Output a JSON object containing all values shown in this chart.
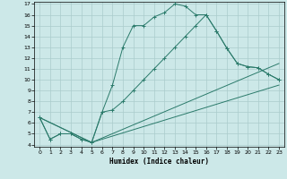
{
  "title": "",
  "xlabel": "Humidex (Indice chaleur)",
  "bg_color": "#cce8e8",
  "line_color": "#2a7a6a",
  "grid_color": "#aacccc",
  "xlim": [
    -0.5,
    23.5
  ],
  "ylim": [
    3.8,
    17.2
  ],
  "xticks": [
    0,
    1,
    2,
    3,
    4,
    5,
    6,
    7,
    8,
    9,
    10,
    11,
    12,
    13,
    14,
    15,
    16,
    17,
    18,
    19,
    20,
    21,
    22,
    23
  ],
  "yticks": [
    4,
    5,
    6,
    7,
    8,
    9,
    10,
    11,
    12,
    13,
    14,
    15,
    16,
    17
  ],
  "line1_x": [
    0,
    1,
    2,
    3,
    4,
    5,
    6,
    7,
    8,
    9,
    10,
    11,
    12,
    13,
    14,
    15,
    16,
    17,
    18,
    19,
    20,
    21,
    22,
    23
  ],
  "line1_y": [
    6.5,
    4.5,
    5.0,
    5.0,
    4.5,
    4.2,
    7.0,
    9.5,
    13.0,
    15.0,
    15.0,
    15.8,
    16.2,
    17.0,
    16.8,
    16.0,
    16.0,
    14.5,
    12.9,
    11.5,
    11.2,
    11.1,
    10.5,
    10.0
  ],
  "line2_x": [
    0,
    1,
    2,
    3,
    4,
    5,
    6,
    7,
    8,
    9,
    10,
    11,
    12,
    13,
    14,
    15,
    16,
    17,
    18,
    19,
    20,
    21,
    22,
    23
  ],
  "line2_y": [
    6.5,
    4.5,
    5.0,
    5.0,
    4.5,
    4.2,
    7.0,
    7.2,
    8.0,
    9.0,
    10.0,
    11.0,
    12.0,
    13.0,
    14.0,
    15.0,
    16.0,
    14.5,
    12.9,
    11.5,
    11.2,
    11.1,
    10.5,
    10.0
  ],
  "line3_x": [
    0,
    5,
    23
  ],
  "line3_y": [
    6.5,
    4.2,
    11.5
  ],
  "line4_x": [
    0,
    5,
    23
  ],
  "line4_y": [
    6.5,
    4.2,
    9.5
  ]
}
